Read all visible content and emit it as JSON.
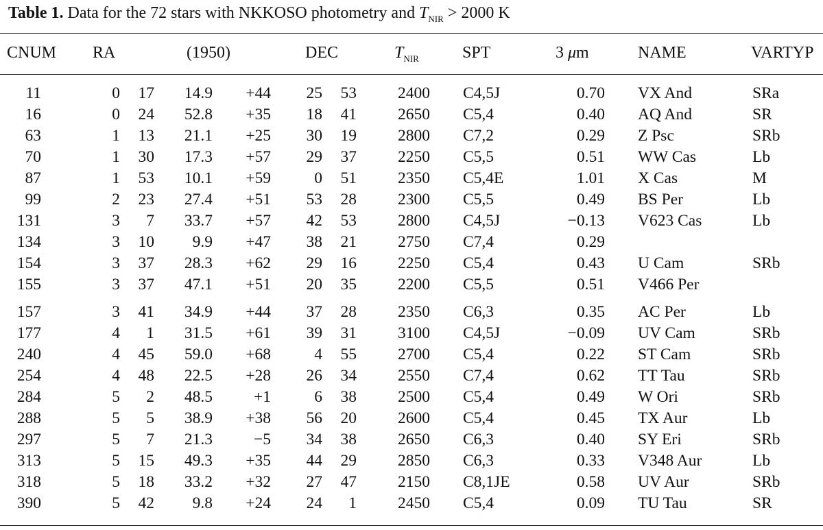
{
  "caption": {
    "label": "Table 1.",
    "text_before": "Data for the 72 stars with NKKOSO photometry and ",
    "t_symbol": "T",
    "t_sub": "NIR",
    "text_after": " > 2000 K"
  },
  "headers": {
    "cnum": "CNUM",
    "ra": "RA",
    "epoch": "(1950)",
    "dec": "DEC",
    "tnir_symbol": "T",
    "tnir_sub": "NIR",
    "spt": "SPT",
    "mu_num": "3 ",
    "mu_symbol": "μ",
    "mu_unit": "m",
    "name": "NAME",
    "vartyp": "VARTYP"
  },
  "rows": [
    {
      "cnum": "11",
      "rah": "0",
      "ram": "17",
      "ras": "14.9",
      "decd": "+44",
      "decm": "25",
      "decs": "53",
      "tnir": "2400",
      "spt": "C4,5J",
      "mag": "0.70",
      "name": "VX And",
      "var": "SRa"
    },
    {
      "cnum": "16",
      "rah": "0",
      "ram": "24",
      "ras": "52.8",
      "decd": "+35",
      "decm": "18",
      "decs": "41",
      "tnir": "2650",
      "spt": "C5,4",
      "mag": "0.40",
      "name": "AQ And",
      "var": "SR"
    },
    {
      "cnum": "63",
      "rah": "1",
      "ram": "13",
      "ras": "21.1",
      "decd": "+25",
      "decm": "30",
      "decs": "19",
      "tnir": "2800",
      "spt": "C7,2",
      "mag": "0.29",
      "name": "Z Psc",
      "var": "SRb"
    },
    {
      "cnum": "70",
      "rah": "1",
      "ram": "30",
      "ras": "17.3",
      "decd": "+57",
      "decm": "29",
      "decs": "37",
      "tnir": "2250",
      "spt": "C5,5",
      "mag": "0.51",
      "name": "WW Cas",
      "var": "Lb"
    },
    {
      "cnum": "87",
      "rah": "1",
      "ram": "53",
      "ras": "10.1",
      "decd": "+59",
      "decm": "0",
      "decs": "51",
      "tnir": "2350",
      "spt": "C5,4E",
      "mag": "1.01",
      "name": "X Cas",
      "var": "M"
    },
    {
      "cnum": "99",
      "rah": "2",
      "ram": "23",
      "ras": "27.4",
      "decd": "+51",
      "decm": "53",
      "decs": "28",
      "tnir": "2300",
      "spt": "C5,5",
      "mag": "0.49",
      "name": "BS Per",
      "var": "Lb"
    },
    {
      "cnum": "131",
      "rah": "3",
      "ram": "7",
      "ras": "33.7",
      "decd": "+57",
      "decm": "42",
      "decs": "53",
      "tnir": "2800",
      "spt": "C4,5J",
      "mag": "−0.13",
      "name": "V623 Cas",
      "var": "Lb"
    },
    {
      "cnum": "134",
      "rah": "3",
      "ram": "10",
      "ras": "9.9",
      "decd": "+47",
      "decm": "38",
      "decs": "21",
      "tnir": "2750",
      "spt": "C7,4",
      "mag": "0.29",
      "name": "",
      "var": ""
    },
    {
      "cnum": "154",
      "rah": "3",
      "ram": "37",
      "ras": "28.3",
      "decd": "+62",
      "decm": "29",
      "decs": "16",
      "tnir": "2250",
      "spt": "C5,4",
      "mag": "0.43",
      "name": "U Cam",
      "var": "SRb"
    },
    {
      "cnum": "155",
      "rah": "3",
      "ram": "37",
      "ras": "47.1",
      "decd": "+51",
      "decm": "20",
      "decs": "35",
      "tnir": "2200",
      "spt": "C5,5",
      "mag": "0.51",
      "name": "V466 Per",
      "var": ""
    },
    {
      "cnum": "157",
      "rah": "3",
      "ram": "41",
      "ras": "34.9",
      "decd": "+44",
      "decm": "37",
      "decs": "28",
      "tnir": "2350",
      "spt": "C6,3",
      "mag": "0.35",
      "name": "AC Per",
      "var": "Lb"
    },
    {
      "cnum": "177",
      "rah": "4",
      "ram": "1",
      "ras": "31.5",
      "decd": "+61",
      "decm": "39",
      "decs": "31",
      "tnir": "3100",
      "spt": "C4,5J",
      "mag": "−0.09",
      "name": "UV Cam",
      "var": "SRb"
    },
    {
      "cnum": "240",
      "rah": "4",
      "ram": "45",
      "ras": "59.0",
      "decd": "+68",
      "decm": "4",
      "decs": "55",
      "tnir": "2700",
      "spt": "C5,4",
      "mag": "0.22",
      "name": "ST Cam",
      "var": "SRb"
    },
    {
      "cnum": "254",
      "rah": "4",
      "ram": "48",
      "ras": "22.5",
      "decd": "+28",
      "decm": "26",
      "decs": "34",
      "tnir": "2550",
      "spt": "C7,4",
      "mag": "0.62",
      "name": "TT Tau",
      "var": "SRb"
    },
    {
      "cnum": "284",
      "rah": "5",
      "ram": "2",
      "ras": "48.5",
      "decd": "+1",
      "decm": "6",
      "decs": "38",
      "tnir": "2500",
      "spt": "C5,4",
      "mag": "0.49",
      "name": "W Ori",
      "var": "SRb"
    },
    {
      "cnum": "288",
      "rah": "5",
      "ram": "5",
      "ras": "38.9",
      "decd": "+38",
      "decm": "56",
      "decs": "20",
      "tnir": "2600",
      "spt": "C5,4",
      "mag": "0.45",
      "name": "TX Aur",
      "var": "Lb"
    },
    {
      "cnum": "297",
      "rah": "5",
      "ram": "7",
      "ras": "21.3",
      "decd": "−5",
      "decm": "34",
      "decs": "38",
      "tnir": "2650",
      "spt": "C6,3",
      "mag": "0.40",
      "name": "SY Eri",
      "var": "SRb"
    },
    {
      "cnum": "313",
      "rah": "5",
      "ram": "15",
      "ras": "49.3",
      "decd": "+35",
      "decm": "44",
      "decs": "29",
      "tnir": "2850",
      "spt": "C6,3",
      "mag": "0.33",
      "name": "V348 Aur",
      "var": "Lb"
    },
    {
      "cnum": "318",
      "rah": "5",
      "ram": "18",
      "ras": "33.2",
      "decd": "+32",
      "decm": "27",
      "decs": "47",
      "tnir": "2150",
      "spt": "C8,1JE",
      "mag": "0.58",
      "name": "UV Aur",
      "var": "SRb"
    },
    {
      "cnum": "390",
      "rah": "5",
      "ram": "42",
      "ras": "9.8",
      "decd": "+24",
      "decm": "24",
      "decs": "1",
      "tnir": "2450",
      "spt": "C5,4",
      "mag": "0.09",
      "name": "TU Tau",
      "var": "SR"
    }
  ]
}
